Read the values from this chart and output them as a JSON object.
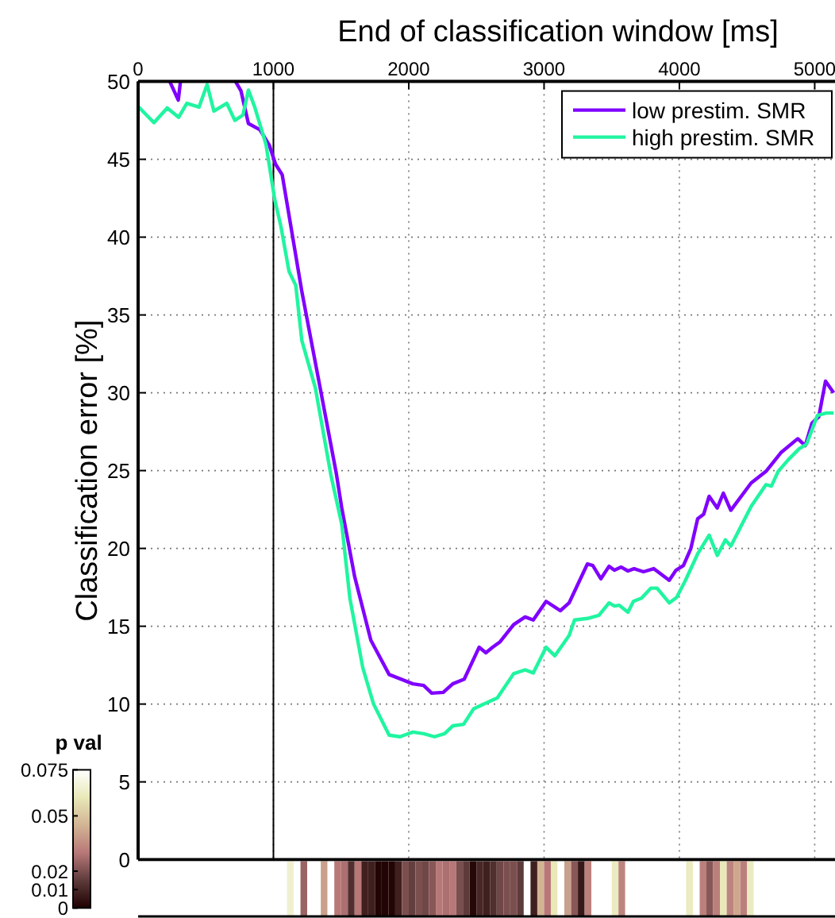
{
  "chart_data": [
    {
      "type": "line",
      "xlabel": "End of classification window [ms]",
      "ylabel": "Classification error [%]",
      "xlim": [
        0,
        5150
      ],
      "xticks": [
        0,
        1000,
        2000,
        3000,
        4000,
        5000
      ],
      "ylim": [
        0,
        50
      ],
      "yticks": [
        0,
        5,
        10,
        15,
        20,
        25,
        30,
        35,
        40,
        45,
        50
      ],
      "grid": true,
      "legend": "top right",
      "ref_lines": [
        {
          "axis": "x",
          "value": 1000,
          "color": "#000000"
        }
      ],
      "series": [
        {
          "name": "low prestim. SMR",
          "color": "#8000ff",
          "x": [
            234,
            297,
            313,
            400,
            510,
            570,
            650,
            720,
            760,
            815,
            900,
            970,
            1015,
            1065,
            1210,
            1350,
            1465,
            1505,
            1600,
            1720,
            1855,
            2030,
            2110,
            2170,
            2255,
            2325,
            2410,
            2520,
            2570,
            2620,
            2675,
            2775,
            2860,
            2920,
            3015,
            3120,
            3185,
            3320,
            3360,
            3420,
            3480,
            3520,
            3570,
            3620,
            3665,
            3735,
            3810,
            3925,
            3975,
            4030,
            4085,
            4135,
            4180,
            4220,
            4280,
            4325,
            4380,
            4530,
            4640,
            4750,
            4875,
            4930,
            4980,
            5030,
            5080,
            5140
          ],
          "values": [
            50,
            48.8,
            50,
            null,
            null,
            null,
            null,
            50,
            49.4,
            47.3,
            46.9,
            45.9,
            44.7,
            44.0,
            36.5,
            30.1,
            24.8,
            22.6,
            18.2,
            14.1,
            11.9,
            11.3,
            11.2,
            10.7,
            10.75,
            11.3,
            11.6,
            13.65,
            13.3,
            13.65,
            14.0,
            15.1,
            15.6,
            15.4,
            16.6,
            16.0,
            16.5,
            19.0,
            18.9,
            18.05,
            18.85,
            18.6,
            18.8,
            18.55,
            18.7,
            18.5,
            18.7,
            17.95,
            18.6,
            18.9,
            20.0,
            21.9,
            22.2,
            23.35,
            22.6,
            23.55,
            22.45,
            24.2,
            24.95,
            26.15,
            27.05,
            26.6,
            28.05,
            28.45,
            30.75,
            30.0
          ]
        },
        {
          "name": "high prestim. SMR",
          "color": "#20f5a0",
          "x": [
            0,
            117,
            215,
            300,
            360,
            450,
            510,
            560,
            655,
            715,
            775,
            815,
            860,
            945,
            1010,
            1055,
            1115,
            1165,
            1210,
            1310,
            1425,
            1505,
            1565,
            1660,
            1740,
            1855,
            1935,
            2030,
            2110,
            2190,
            2265,
            2325,
            2405,
            2480,
            2655,
            2775,
            2860,
            2920,
            3015,
            3080,
            3185,
            3225,
            3320,
            3405,
            3480,
            3520,
            3555,
            3620,
            3660,
            3720,
            3790,
            3835,
            3925,
            3980,
            4045,
            4135,
            4220,
            4280,
            4340,
            4380,
            4530,
            4640,
            4680,
            4730,
            4805,
            4885,
            4940,
            5020,
            5085,
            5140
          ],
          "values": [
            48.4,
            47.35,
            48.3,
            47.7,
            48.6,
            48.35,
            49.8,
            48.1,
            48.6,
            47.5,
            47.85,
            49.45,
            48.4,
            45.95,
            42.4,
            40.7,
            37.8,
            36.9,
            33.35,
            30.3,
            24.7,
            21.55,
            16.8,
            12.35,
            10.0,
            8.0,
            7.9,
            8.2,
            8.1,
            7.9,
            8.1,
            8.6,
            8.7,
            9.7,
            10.4,
            11.95,
            12.2,
            12.0,
            13.65,
            13.1,
            14.4,
            15.4,
            15.5,
            15.7,
            16.5,
            16.3,
            16.35,
            15.9,
            16.6,
            16.8,
            17.45,
            17.45,
            16.5,
            16.85,
            17.95,
            19.65,
            20.85,
            19.55,
            20.55,
            20.15,
            22.7,
            24.1,
            24.0,
            24.95,
            25.7,
            26.4,
            26.7,
            28.55,
            28.7,
            28.7
          ]
        }
      ]
    },
    {
      "type": "heatmap",
      "clabel": "p val",
      "clim": [
        0,
        0.075
      ],
      "cticks": [
        0,
        0.01,
        0.02,
        0.05,
        0.075
      ],
      "categories": [
        null,
        null,
        null,
        null,
        null,
        null,
        null,
        null,
        null,
        null,
        null,
        null,
        null,
        null,
        null,
        null,
        null,
        null,
        null,
        null,
        null,
        null,
        null,
        null,
        null,
        null,
        null,
        null,
        null,
        null,
        null,
        null,
        null,
        null,
        null,
        null,
        null,
        null,
        null,
        null,
        null,
        null,
        null,
        null,
        null,
        null,
        null,
        null,
        null,
        null,
        null,
        null,
        null,
        null,
        null,
        null,
        null,
        null,
        null,
        null,
        null,
        null,
        null,
        null,
        null,
        null,
        null,
        null,
        null,
        null,
        null,
        null,
        null,
        null,
        null,
        null,
        null,
        null,
        null,
        null,
        null,
        null,
        null,
        null,
        null,
        null,
        null,
        null,
        null,
        null,
        null,
        null,
        null,
        null,
        null,
        null,
        null,
        null,
        null,
        null,
        null,
        null,
        null
      ],
      "y_categories": [
        null
      ],
      "cells": [
        [
          null,
          null,
          null,
          null,
          null,
          null,
          null,
          null,
          null,
          null,
          null,
          null,
          null,
          null,
          null,
          null,
          null,
          null,
          null,
          null,
          null,
          null,
          0.065,
          null,
          0.025,
          null,
          null,
          0.04,
          null,
          0.03,
          0.028,
          0.012,
          0.03,
          0.008,
          0.008,
          0.001,
          0.001,
          0.001,
          0.008,
          0.02,
          0.016,
          0.02,
          0.018,
          0.022,
          0.03,
          0.028,
          0.03,
          0.02,
          0.015,
          0.002,
          0.01,
          0.008,
          0.012,
          0.018,
          0.02,
          0.02,
          0.015,
          null,
          0.008,
          0.045,
          0.03,
          0.06,
          null,
          0.04,
          0.022,
          0.006,
          0.032,
          null,
          null,
          null,
          0.062,
          0.033,
          null,
          null,
          null,
          null,
          null,
          null,
          null,
          null,
          null,
          0.062,
          null,
          0.032,
          0.022,
          0.032,
          0.06,
          0.033,
          0.042,
          0.032,
          0.062,
          null,
          null,
          null,
          null,
          null,
          null,
          null,
          null,
          null,
          null,
          null,
          null
        ]
      ]
    }
  ]
}
